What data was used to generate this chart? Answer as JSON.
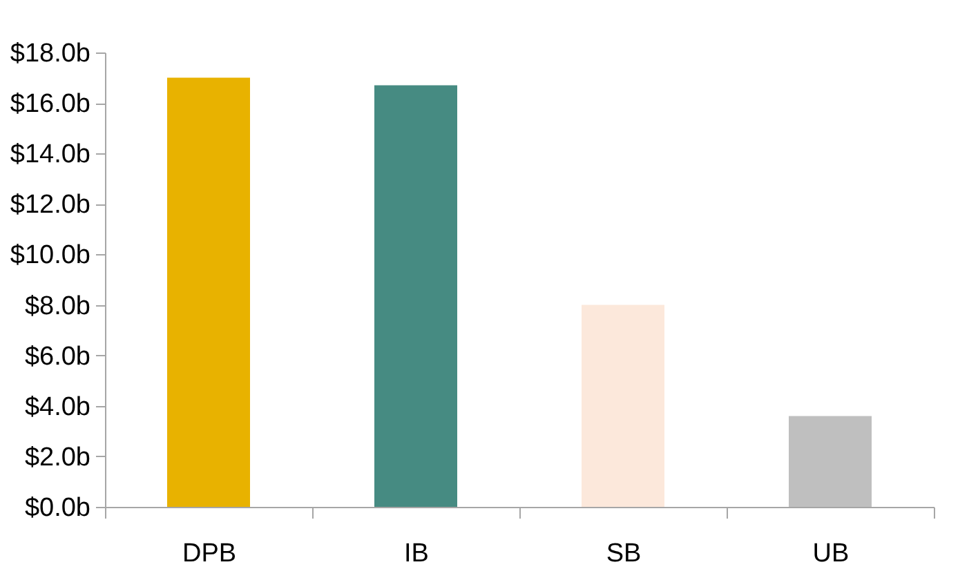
{
  "chart_data": {
    "type": "bar",
    "categories": [
      "DPB",
      "IB",
      "SB",
      "UB"
    ],
    "values": [
      17.0,
      16.7,
      8.0,
      3.6
    ],
    "colors": [
      "#e8b200",
      "#468b82",
      "#fce8db",
      "#bfbfbf"
    ],
    "ylim": [
      0,
      18
    ],
    "yticks": [
      {
        "value": 0,
        "label": "$0.0b"
      },
      {
        "value": 2,
        "label": "$2.0b"
      },
      {
        "value": 4,
        "label": "$4.0b"
      },
      {
        "value": 6,
        "label": "$6.0b"
      },
      {
        "value": 8,
        "label": "$8.0b"
      },
      {
        "value": 10,
        "label": "$10.0b"
      },
      {
        "value": 12,
        "label": "$12.0b"
      },
      {
        "value": 14,
        "label": "$14.0b"
      },
      {
        "value": 16,
        "label": "$16.0b"
      },
      {
        "value": 18,
        "label": "$18.0b"
      }
    ],
    "grid": false
  }
}
